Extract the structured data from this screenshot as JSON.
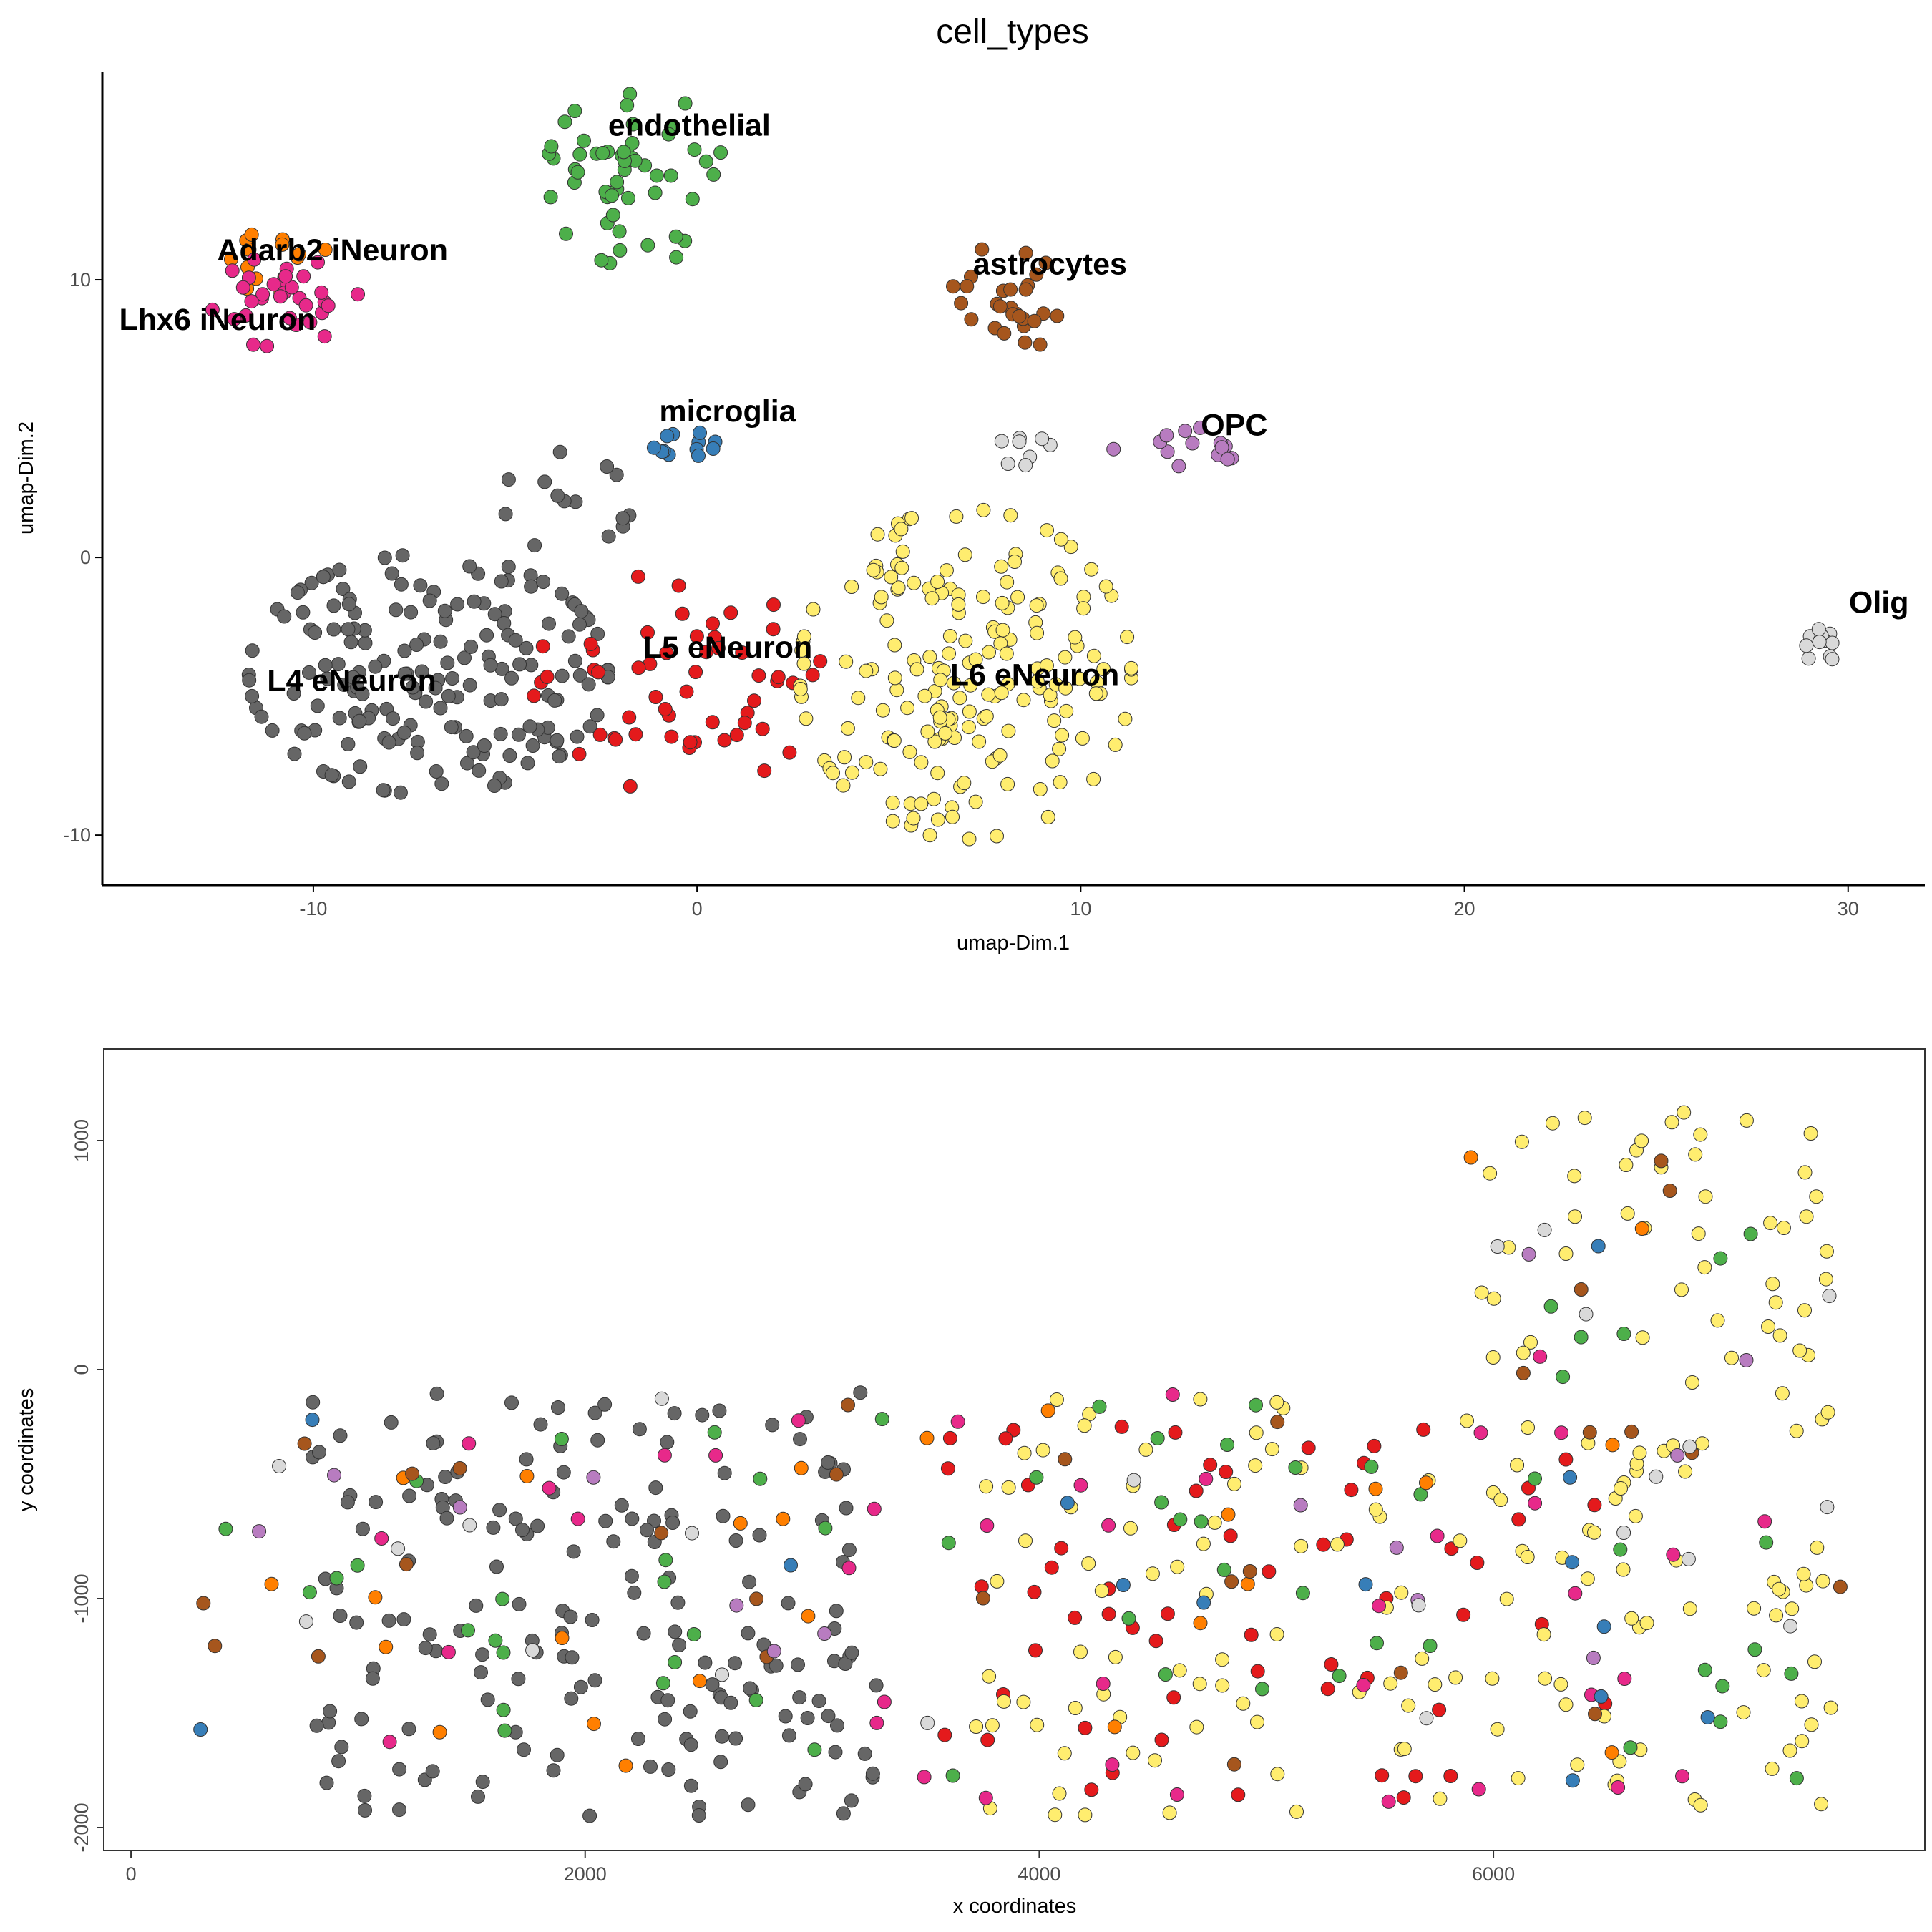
{
  "figure_title": "cell_types",
  "colors": {
    "L4 eNeuron": "#666666",
    "L5 eNeuron": "#E41A1C",
    "L6 eNeuron": "#FFED6F",
    "endothelial": "#4DAF4A",
    "Adarb2 iNeuron": "#FF7F00",
    "Lhx6 iNeuron": "#E7298A",
    "astrocytes": "#A6561D",
    "microglia": "#377EB8",
    "OPC": "#B87CC0",
    "Olig": "#D9D9D9"
  },
  "chart_data": [
    {
      "type": "scatter",
      "title": "cell_types",
      "xlabel": "umap-Dim.1",
      "ylabel": "umap-Dim.2",
      "xlim": [
        -15.5,
        32
      ],
      "ylim": [
        -11.8,
        17.5
      ],
      "xticks": [
        -10,
        0,
        10,
        20,
        30
      ],
      "yticks": [
        -10,
        0,
        10
      ],
      "grid": false,
      "legend": "none",
      "cluster_labels": [
        {
          "text": "endothelial",
          "x": -0.2,
          "y": 15.2
        },
        {
          "text": "Adarb2 iNeuron",
          "x": -9.5,
          "y": 10.7
        },
        {
          "text": "Lhx6 iNeuron",
          "x": -12.5,
          "y": 8.2
        },
        {
          "text": "astrocytes",
          "x": 9.2,
          "y": 10.2
        },
        {
          "text": "microglia",
          "x": 0.8,
          "y": 4.9
        },
        {
          "text": "OPC",
          "x": 14.0,
          "y": 4.4
        },
        {
          "text": "Olig",
          "x": 30.8,
          "y": -2.0
        },
        {
          "text": "L5 eNeuron",
          "x": 0.8,
          "y": -3.6
        },
        {
          "text": "L4 eNeuron",
          "x": -9.0,
          "y": -4.8
        },
        {
          "text": "L6 eNeuron",
          "x": 8.8,
          "y": -4.6
        }
      ],
      "clusters": [
        {
          "name": "L4 eNeuron",
          "cx": -7.0,
          "cy": -4.2,
          "sx": 2.6,
          "sy": 2.4,
          "n": 180,
          "seed": 11
        },
        {
          "name": "L4 eNeuron",
          "cx": -3.5,
          "cy": 2.0,
          "sx": 1.0,
          "sy": 1.0,
          "n": 14,
          "seed": 12
        },
        {
          "name": "L5 eNeuron",
          "cx": -0.5,
          "cy": -4.5,
          "sx": 2.1,
          "sy": 2.2,
          "n": 55,
          "seed": 21
        },
        {
          "name": "L6 eNeuron",
          "cx": 7.0,
          "cy": -4.2,
          "sx": 2.4,
          "sy": 3.3,
          "n": 190,
          "seed": 31
        },
        {
          "name": "endothelial",
          "cx": -1.6,
          "cy": 13.7,
          "sx": 1.3,
          "sy": 1.8,
          "n": 55,
          "seed": 41
        },
        {
          "name": "Adarb2 iNeuron",
          "cx": -11.2,
          "cy": 10.4,
          "sx": 1.0,
          "sy": 0.7,
          "n": 14,
          "seed": 51
        },
        {
          "name": "Lhx6 iNeuron",
          "cx": -11.0,
          "cy": 9.4,
          "sx": 1.2,
          "sy": 1.0,
          "n": 32,
          "seed": 61
        },
        {
          "name": "astrocytes",
          "cx": 8.0,
          "cy": 9.3,
          "sx": 0.8,
          "sy": 1.2,
          "n": 28,
          "seed": 71
        },
        {
          "name": "microglia",
          "cx": -0.6,
          "cy": 4.1,
          "sx": 0.6,
          "sy": 0.3,
          "n": 12,
          "seed": 81
        },
        {
          "name": "OPC",
          "cx": 12.6,
          "cy": 3.8,
          "sx": 1.1,
          "sy": 0.5,
          "n": 14,
          "seed": 91
        },
        {
          "name": "Olig",
          "cx": 8.6,
          "cy": 3.9,
          "sx": 0.4,
          "sy": 0.4,
          "n": 8,
          "seed": 101
        },
        {
          "name": "Olig",
          "cx": 29.3,
          "cy": -3.1,
          "sx": 0.35,
          "sy": 0.35,
          "n": 12,
          "seed": 102
        }
      ]
    },
    {
      "type": "scatter",
      "title": "",
      "xlabel": "x coordinates",
      "ylabel": "y coordinates",
      "xlim": [
        -120,
        7900
      ],
      "ylim": [
        -2100,
        1400
      ],
      "xticks": [
        0,
        2000,
        4000,
        6000
      ],
      "yticks": [
        -2000,
        -1000,
        0,
        1000
      ],
      "grid": false,
      "legend": "none",
      "regions": [
        {
          "name": "L4 eNeuron",
          "x0": 800,
          "x1": 3300,
          "y0": -1950,
          "y1": -100,
          "n": 180,
          "seed": 201
        },
        {
          "name": "L5 eNeuron",
          "x0": 3500,
          "x1": 6500,
          "y0": -1950,
          "y1": -200,
          "n": 60,
          "seed": 202
        },
        {
          "name": "L6 eNeuron",
          "x0": 3700,
          "x1": 7500,
          "y0": -1950,
          "y1": 1200,
          "n": 190,
          "seed": 203
        },
        {
          "name": "endothelial",
          "x0": 400,
          "x1": 7400,
          "y0": -1800,
          "y1": 900,
          "n": 60,
          "seed": 204
        },
        {
          "name": "Adarb2 iNeuron",
          "x0": 300,
          "x1": 6700,
          "y0": -1750,
          "y1": 1000,
          "n": 26,
          "seed": 205
        },
        {
          "name": "Lhx6 iNeuron",
          "x0": 900,
          "x1": 7200,
          "y0": -1950,
          "y1": 300,
          "n": 40,
          "seed": 206
        },
        {
          "name": "astrocytes",
          "x0": 300,
          "x1": 7600,
          "y0": -1750,
          "y1": 1050,
          "n": 28,
          "seed": 207
        },
        {
          "name": "microglia",
          "x0": 300,
          "x1": 7000,
          "y0": -1850,
          "y1": 700,
          "n": 14,
          "seed": 208
        },
        {
          "name": "OPC",
          "x0": 300,
          "x1": 7600,
          "y0": -1450,
          "y1": 650,
          "n": 14,
          "seed": 209
        },
        {
          "name": "Olig",
          "x0": 600,
          "x1": 7600,
          "y0": -1700,
          "y1": 950,
          "n": 22,
          "seed": 210
        }
      ]
    }
  ]
}
